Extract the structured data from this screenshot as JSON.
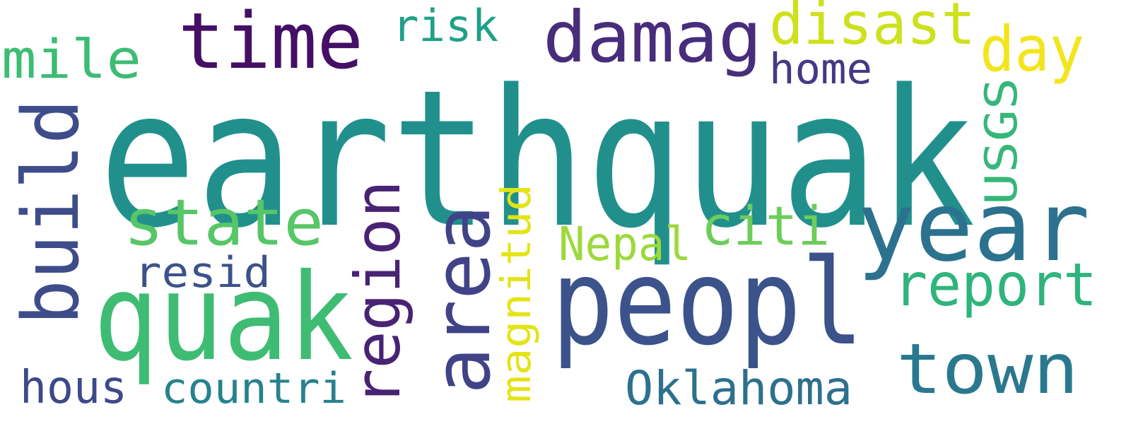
{
  "words": [
    {
      "text": "earthquak",
      "color": "#21908d"
    },
    {
      "text": "time",
      "color": "#440f65"
    },
    {
      "text": "damag",
      "color": "#472d7b"
    },
    {
      "text": "disast",
      "color": "#cde11d"
    },
    {
      "text": "risk",
      "color": "#1fa088"
    },
    {
      "text": "mile",
      "color": "#3dbc74"
    },
    {
      "text": "day",
      "color": "#f2e51d"
    },
    {
      "text": "home",
      "color": "#443983"
    },
    {
      "text": "build",
      "color": "#3e4c8a"
    },
    {
      "text": "USGS",
      "color": "#35b779"
    },
    {
      "text": "state",
      "color": "#56c667"
    },
    {
      "text": "year",
      "color": "#2c718e"
    },
    {
      "text": "citi",
      "color": "#6ccd5a"
    },
    {
      "text": "region",
      "color": "#482374"
    },
    {
      "text": "area",
      "color": "#404387"
    },
    {
      "text": "magnitud",
      "color": "#e2e418"
    },
    {
      "text": "Nepal",
      "color": "#9dd93b"
    },
    {
      "text": "resid",
      "color": "#3b528b"
    },
    {
      "text": "quak",
      "color": "#3fbc73"
    },
    {
      "text": "peopl",
      "color": "#3b528b"
    },
    {
      "text": "report",
      "color": "#2fb47c"
    },
    {
      "text": "town",
      "color": "#2a788e"
    },
    {
      "text": "hous",
      "color": "#3e4989"
    },
    {
      "text": "countri",
      "color": "#26828e"
    },
    {
      "text": "Oklahoma",
      "color": "#2d708e"
    }
  ]
}
